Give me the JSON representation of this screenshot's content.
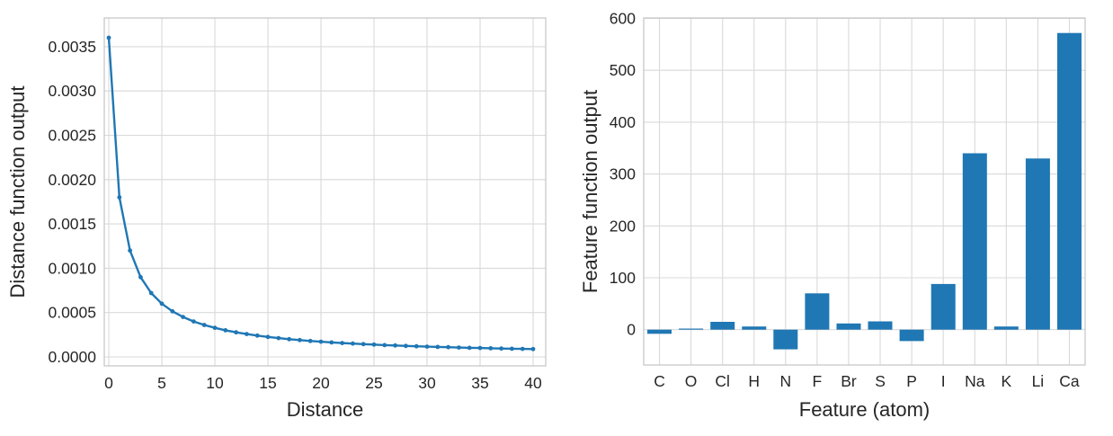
{
  "figure": {
    "background": "#ffffff",
    "left_chart_label": "Distance function line plot",
    "right_chart_label": "Feature function bar chart"
  },
  "styles": {
    "accent": "#1f77b4",
    "grid_color": "#d9d9d9",
    "frame_color": "#c8c8c8",
    "text_color": "#262626"
  },
  "chart_data": [
    {
      "type": "line",
      "title": "",
      "xlabel": "Distance",
      "ylabel": "Distance function output",
      "line_color": "#1f77b4",
      "marker": "circle",
      "grid": true,
      "legend": "none",
      "xlim": [
        -0.45,
        41.2
      ],
      "ylim": [
        -0.00011,
        0.00382
      ],
      "xticks": [
        0,
        5,
        10,
        15,
        20,
        25,
        30,
        35,
        40
      ],
      "yticks": [
        0.0,
        0.0005,
        0.001,
        0.0015,
        0.002,
        0.0025,
        0.003,
        0.0035
      ],
      "ytick_labels": [
        "0.0000",
        "0.0005",
        "0.0010",
        "0.0015",
        "0.0020",
        "0.0025",
        "0.0030",
        "0.0035"
      ],
      "x": [
        0,
        1,
        2,
        3,
        4,
        5,
        6,
        7,
        8,
        9,
        10,
        11,
        12,
        13,
        14,
        15,
        16,
        17,
        18,
        19,
        20,
        21,
        22,
        23,
        24,
        25,
        26,
        27,
        28,
        29,
        30,
        31,
        32,
        33,
        34,
        35,
        36,
        37,
        38,
        39,
        40
      ],
      "y": [
        0.0036,
        0.0018,
        0.0012,
        0.0009,
        0.00072,
        0.0006,
        0.0005143,
        0.00045,
        0.0004,
        0.00036,
        0.0003273,
        0.0003,
        0.0002769,
        0.0002571,
        0.00024,
        0.000225,
        0.0002118,
        0.0002,
        0.0001895,
        0.00018,
        0.0001714,
        0.0001636,
        0.0001565,
        0.00015,
        0.000144,
        0.0001385,
        0.0001333,
        0.0001286,
        0.0001241,
        0.00012,
        0.0001161,
        0.0001125,
        0.0001091,
        0.0001059,
        0.0001029,
        0.0001,
        9.73e-05,
        9.47e-05,
        9.23e-05,
        9e-05,
        8.78e-05
      ]
    },
    {
      "type": "bar",
      "title": "",
      "xlabel": "Feature (atom)",
      "ylabel": "Feature function output",
      "bar_color": "#1f77b4",
      "grid": true,
      "legend": "none",
      "ylim": [
        -68,
        601
      ],
      "yticks": [
        0,
        100,
        200,
        300,
        400,
        500,
        600
      ],
      "ytick_labels": [
        "0",
        "100",
        "200",
        "300",
        "400",
        "500",
        "600"
      ],
      "categories": [
        "C",
        "O",
        "Cl",
        "H",
        "N",
        "F",
        "Br",
        "S",
        "P",
        "I",
        "Na",
        "K",
        "Li",
        "Ca"
      ],
      "values": [
        -8,
        2,
        15,
        6,
        -38,
        70,
        12,
        16,
        -22,
        88,
        340,
        6,
        330,
        572
      ]
    }
  ]
}
